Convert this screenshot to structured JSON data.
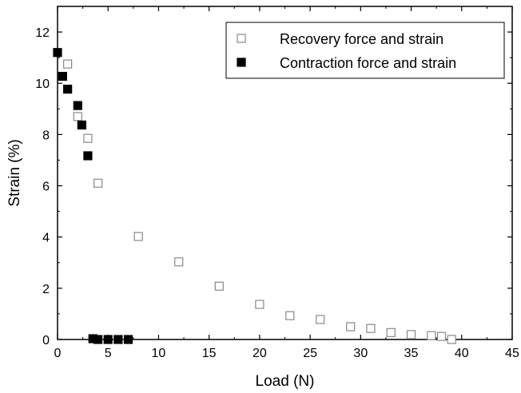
{
  "chart_data": {
    "type": "scatter",
    "title": "",
    "xlabel": "Load (N)",
    "ylabel": "Strain (%)",
    "xlim": [
      0,
      45
    ],
    "ylim": [
      0,
      13
    ],
    "xticks": [
      0,
      5,
      10,
      15,
      20,
      25,
      30,
      35,
      40,
      45
    ],
    "yticks": [
      0,
      2,
      4,
      6,
      8,
      10,
      12
    ],
    "grid": false,
    "legend_position": "top-right",
    "series": [
      {
        "name": "Recovery force and strain",
        "marker": "open-square",
        "color": "#000000",
        "points": [
          {
            "x": 1.0,
            "y": 10.75
          },
          {
            "x": 2.0,
            "y": 8.7
          },
          {
            "x": 3.0,
            "y": 7.85
          },
          {
            "x": 4.0,
            "y": 6.1
          },
          {
            "x": 8.0,
            "y": 4.02
          },
          {
            "x": 12.0,
            "y": 3.03
          },
          {
            "x": 16.0,
            "y": 2.08
          },
          {
            "x": 20.0,
            "y": 1.37
          },
          {
            "x": 23.0,
            "y": 0.93
          },
          {
            "x": 26.0,
            "y": 0.78
          },
          {
            "x": 29.0,
            "y": 0.5
          },
          {
            "x": 31.0,
            "y": 0.43
          },
          {
            "x": 33.0,
            "y": 0.27
          },
          {
            "x": 35.0,
            "y": 0.19
          },
          {
            "x": 37.0,
            "y": 0.15
          },
          {
            "x": 38.0,
            "y": 0.12
          },
          {
            "x": 39.0,
            "y": 0.0
          }
        ]
      },
      {
        "name": "Contraction force and strain",
        "marker": "filled-square",
        "color": "#000000",
        "points": [
          {
            "x": 0.0,
            "y": 11.2
          },
          {
            "x": 0.5,
            "y": 10.27
          },
          {
            "x": 1.0,
            "y": 9.77
          },
          {
            "x": 2.0,
            "y": 9.13
          },
          {
            "x": 2.4,
            "y": 8.37
          },
          {
            "x": 3.0,
            "y": 7.17
          },
          {
            "x": 3.5,
            "y": 0.03
          },
          {
            "x": 4.0,
            "y": 0.0
          },
          {
            "x": 5.0,
            "y": 0.0
          },
          {
            "x": 6.0,
            "y": 0.0
          },
          {
            "x": 7.0,
            "y": 0.0
          }
        ]
      }
    ]
  }
}
